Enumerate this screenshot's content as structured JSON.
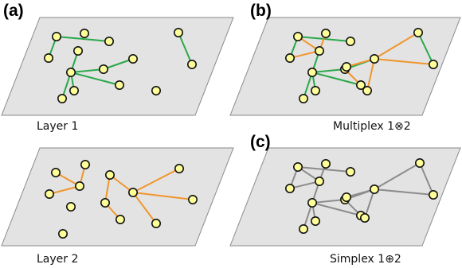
{
  "colors": {
    "green": "#2aa84a",
    "orange": "#f0962e",
    "gray": "#8c8c8c"
  },
  "panels": [
    {
      "key": "layer1",
      "letter": "(a)",
      "caption": "Layer 1",
      "edges": [
        {
          "from": "n1",
          "to": "n2",
          "color": "green"
        },
        {
          "from": "n1",
          "to": "n4",
          "color": "green"
        },
        {
          "from": "n5",
          "to": "n6",
          "color": "green"
        },
        {
          "from": "n6",
          "to": "n7",
          "color": "green"
        },
        {
          "from": "n6",
          "to": "n8",
          "color": "green"
        },
        {
          "from": "n6",
          "to": "n9",
          "color": "green"
        },
        {
          "from": "n6",
          "to": "n11",
          "color": "green"
        },
        {
          "from": "n8",
          "to": "n10",
          "color": "green"
        },
        {
          "from": "n13",
          "to": "n14",
          "color": "green"
        }
      ]
    },
    {
      "key": "multiplex",
      "letter": "(b)",
      "caption": "Multiplex 1⊗2",
      "edges": [
        {
          "from": "n1",
          "to": "n2",
          "color": "green"
        },
        {
          "from": "n1",
          "to": "n4",
          "color": "green"
        },
        {
          "from": "n5",
          "to": "n6",
          "color": "green"
        },
        {
          "from": "n6",
          "to": "n7",
          "color": "green"
        },
        {
          "from": "n6",
          "to": "n8",
          "color": "green"
        },
        {
          "from": "n6",
          "to": "n9",
          "color": "green"
        },
        {
          "from": "n6",
          "to": "n11",
          "color": "green"
        },
        {
          "from": "n8",
          "to": "n10",
          "color": "green"
        },
        {
          "from": "n13",
          "to": "n14",
          "color": "green"
        },
        {
          "from": "n1",
          "to": "n5",
          "color": "orange"
        },
        {
          "from": "n2",
          "to": "n5",
          "color": "orange"
        },
        {
          "from": "n3",
          "to": "n5",
          "color": "orange"
        },
        {
          "from": "n10",
          "to": "n12",
          "color": "orange"
        },
        {
          "from": "n10",
          "to": "n13",
          "color": "orange"
        },
        {
          "from": "n10",
          "to": "n14",
          "color": "orange"
        },
        {
          "from": "n10",
          "to": "n15",
          "color": "orange"
        },
        {
          "from": "n8",
          "to": "n15",
          "color": "orange"
        },
        {
          "from": "n8",
          "to": "n9",
          "color": "orange"
        }
      ]
    },
    {
      "key": "layer2",
      "letter": "",
      "caption": "Layer 2",
      "edges": [
        {
          "from": "n1",
          "to": "n5",
          "color": "orange"
        },
        {
          "from": "n2",
          "to": "n5",
          "color": "orange"
        },
        {
          "from": "n3",
          "to": "n5",
          "color": "orange"
        },
        {
          "from": "n10",
          "to": "n12",
          "color": "orange"
        },
        {
          "from": "n10",
          "to": "n13",
          "color": "orange"
        },
        {
          "from": "n10",
          "to": "n14",
          "color": "orange"
        },
        {
          "from": "n10",
          "to": "n15",
          "color": "orange"
        },
        {
          "from": "n8",
          "to": "n15",
          "color": "orange"
        },
        {
          "from": "n8",
          "to": "n9",
          "color": "orange"
        }
      ]
    },
    {
      "key": "simplex",
      "letter": "(c)",
      "caption": "Simplex 1⊕2",
      "edges": [
        {
          "from": "n1",
          "to": "n2",
          "color": "gray"
        },
        {
          "from": "n1",
          "to": "n4",
          "color": "gray"
        },
        {
          "from": "n5",
          "to": "n6",
          "color": "gray"
        },
        {
          "from": "n6",
          "to": "n7",
          "color": "gray"
        },
        {
          "from": "n6",
          "to": "n8",
          "color": "gray"
        },
        {
          "from": "n6",
          "to": "n9",
          "color": "gray"
        },
        {
          "from": "n6",
          "to": "n11",
          "color": "gray"
        },
        {
          "from": "n8",
          "to": "n10",
          "color": "gray"
        },
        {
          "from": "n13",
          "to": "n14",
          "color": "gray"
        },
        {
          "from": "n1",
          "to": "n5",
          "color": "gray"
        },
        {
          "from": "n2",
          "to": "n5",
          "color": "gray"
        },
        {
          "from": "n3",
          "to": "n5",
          "color": "gray"
        },
        {
          "from": "n10",
          "to": "n12",
          "color": "gray"
        },
        {
          "from": "n10",
          "to": "n13",
          "color": "gray"
        },
        {
          "from": "n10",
          "to": "n14",
          "color": "gray"
        },
        {
          "from": "n10",
          "to": "n15",
          "color": "gray"
        },
        {
          "from": "n8",
          "to": "n15",
          "color": "gray"
        },
        {
          "from": "n8",
          "to": "n9",
          "color": "gray"
        }
      ]
    }
  ]
}
